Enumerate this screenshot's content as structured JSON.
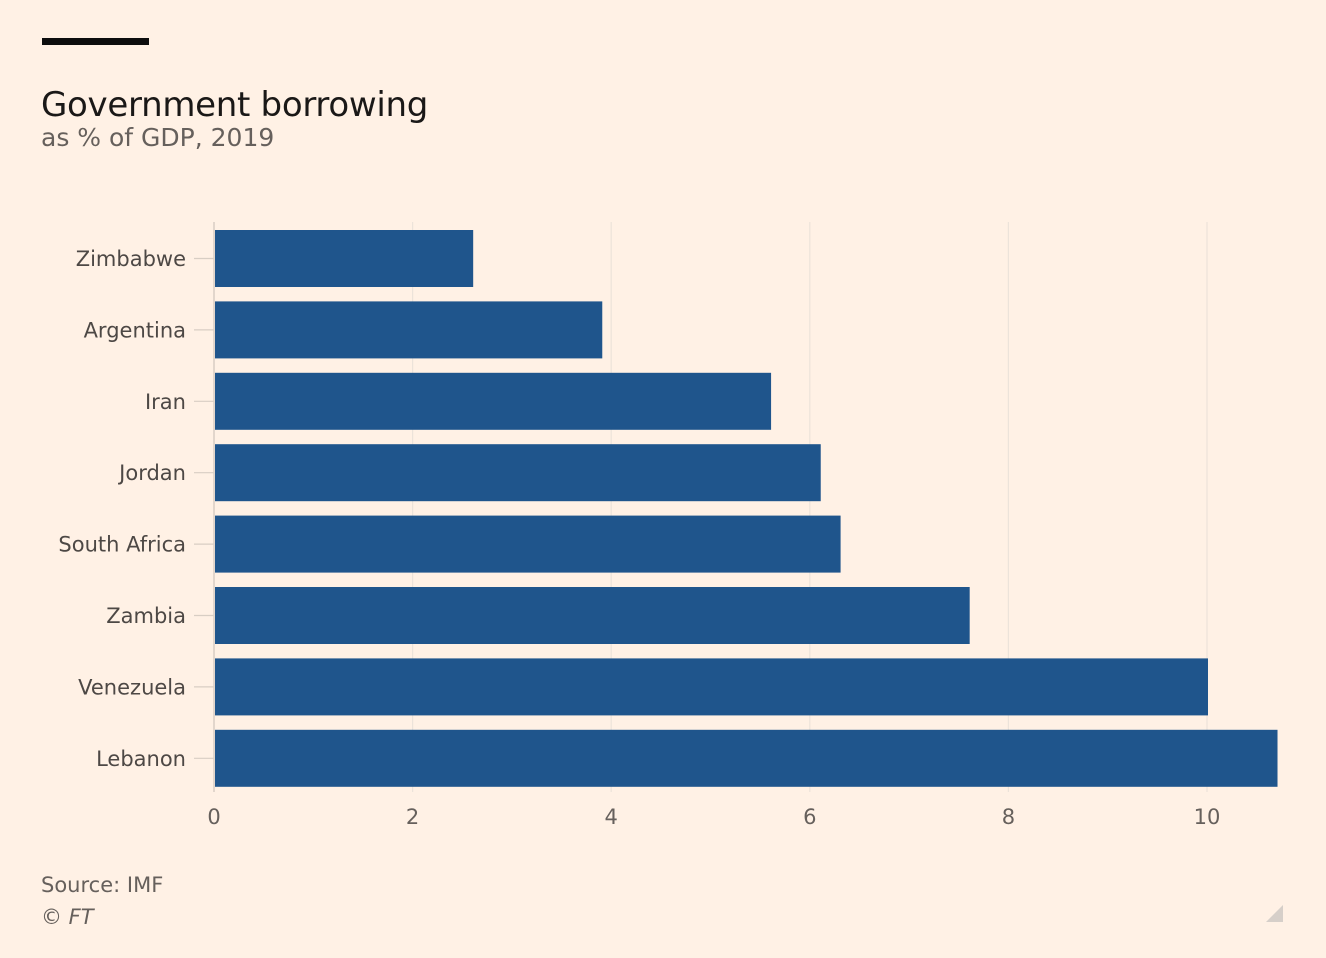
{
  "header": {
    "title": "Government borrowing",
    "subtitle": "as % of GDP, 2019"
  },
  "footer": {
    "source": "Source: IMF",
    "copyright": "© FT"
  },
  "colors": {
    "background": "#fff1e5",
    "bar": "#1f558c",
    "gridline": "#ece3da",
    "text": "#66605c"
  },
  "chart_data": {
    "type": "bar",
    "orientation": "horizontal",
    "title": "Government borrowing",
    "subtitle": "as % of GDP, 2019",
    "xlabel": "",
    "ylabel": "",
    "categories": [
      "Zimbabwe",
      "Argentina",
      "Iran",
      "Jordan",
      "South Africa",
      "Zambia",
      "Venezuela",
      "Lebanon"
    ],
    "values": [
      2.6,
      3.9,
      5.6,
      6.1,
      6.3,
      7.6,
      10.0,
      10.7
    ],
    "xlim": [
      0,
      10.7
    ],
    "xticks": [
      0,
      2,
      4,
      6,
      8,
      10
    ],
    "grid": true,
    "legend": "none"
  }
}
